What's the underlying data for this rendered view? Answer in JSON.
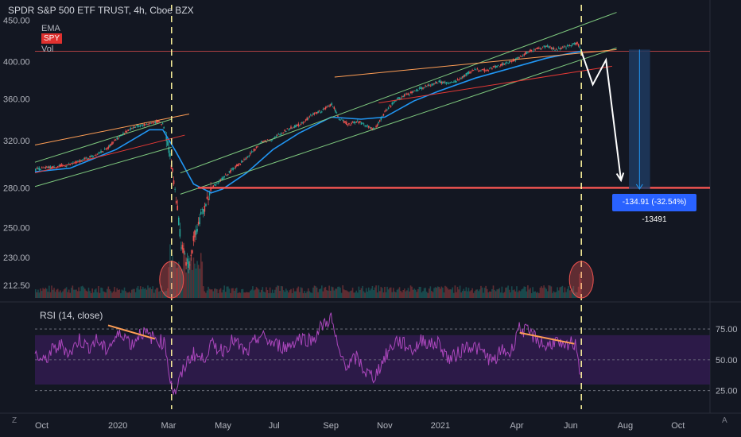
{
  "header": {
    "title": "SPDR S&P 500 ETF TRUST, 4h, Cboe BZX",
    "indicator_ema": "EMA",
    "indicator_vol": "Vol",
    "symbol_badge": "SPY"
  },
  "rsi": {
    "title": "RSI (14, close)"
  },
  "measure": {
    "label": "-134.91 (-32.54%) -13491"
  },
  "corner": {
    "left_icon": "Z",
    "right_icon": "A"
  },
  "colors": {
    "background": "#131722",
    "up": "#26a69a",
    "down": "#ef5350",
    "ema": "#2196f3",
    "rsi_line": "#ab47bc",
    "rsi_band": "#311b4f",
    "channel": "#7ec87e",
    "orange_trend": "#ff9e55",
    "red_trend": "#e53935",
    "support": "#ef5350",
    "measure_box": "#1e3a5f",
    "white_arrow": "#ffffff",
    "vline": "#fff59d"
  },
  "chart_data": [
    {
      "type": "candlestick",
      "name": "SPY 4h price",
      "y_ticks": [
        "450.00",
        "400.00",
        "360.00",
        "320.00",
        "280.00",
        "250.00",
        "230.00",
        "212.50"
      ],
      "y_tick_values": [
        450,
        400,
        360,
        320,
        280,
        250,
        230,
        212.5
      ],
      "y_scale": "log",
      "ylim": [
        205,
        470
      ],
      "x_ticks": [
        "Oct",
        "2020",
        "Mar",
        "May",
        "Jul",
        "Sep",
        "Nov",
        "2021",
        "Apr",
        "Jun",
        "Aug",
        "Oct"
      ],
      "x_tick_days": [
        0,
        92,
        152,
        213,
        274,
        336,
        397,
        458,
        548,
        609,
        670,
        731
      ],
      "xlim_days": [
        0,
        766
      ],
      "price_path": [
        [
          0,
          295
        ],
        [
          20,
          297
        ],
        [
          40,
          299
        ],
        [
          60,
          305
        ],
        [
          80,
          312
        ],
        [
          92,
          322
        ],
        [
          110,
          332
        ],
        [
          130,
          336
        ],
        [
          140,
          338
        ],
        [
          145,
          334
        ],
        [
          150,
          318
        ],
        [
          155,
          295
        ],
        [
          160,
          270
        ],
        [
          165,
          240
        ],
        [
          170,
          228
        ],
        [
          175,
          225
        ],
        [
          180,
          245
        ],
        [
          190,
          262
        ],
        [
          200,
          280
        ],
        [
          213,
          288
        ],
        [
          225,
          296
        ],
        [
          240,
          305
        ],
        [
          255,
          318
        ],
        [
          270,
          322
        ],
        [
          285,
          330
        ],
        [
          300,
          335
        ],
        [
          315,
          345
        ],
        [
          325,
          348
        ],
        [
          336,
          355
        ],
        [
          345,
          340
        ],
        [
          355,
          335
        ],
        [
          365,
          338
        ],
        [
          375,
          334
        ],
        [
          385,
          330
        ],
        [
          397,
          348
        ],
        [
          410,
          360
        ],
        [
          420,
          364
        ],
        [
          430,
          368
        ],
        [
          440,
          372
        ],
        [
          450,
          375
        ],
        [
          458,
          378
        ],
        [
          470,
          376
        ],
        [
          480,
          380
        ],
        [
          490,
          387
        ],
        [
          500,
          392
        ],
        [
          510,
          390
        ],
        [
          520,
          394
        ],
        [
          530,
          397
        ],
        [
          540,
          400
        ],
        [
          548,
          405
        ],
        [
          560,
          412
        ],
        [
          570,
          415
        ],
        [
          580,
          418
        ],
        [
          590,
          414
        ],
        [
          600,
          416
        ],
        [
          609,
          420
        ],
        [
          615,
          422
        ],
        [
          620,
          411
        ]
      ],
      "ema": [
        [
          0,
          293
        ],
        [
          40,
          296
        ],
        [
          92,
          312
        ],
        [
          130,
          330
        ],
        [
          145,
          330
        ],
        [
          160,
          310
        ],
        [
          180,
          283
        ],
        [
          200,
          276
        ],
        [
          213,
          279
        ],
        [
          240,
          292
        ],
        [
          270,
          312
        ],
        [
          300,
          327
        ],
        [
          336,
          342
        ],
        [
          370,
          340
        ],
        [
          397,
          342
        ],
        [
          430,
          358
        ],
        [
          458,
          368
        ],
        [
          500,
          382
        ],
        [
          548,
          395
        ],
        [
          580,
          404
        ],
        [
          609,
          410
        ],
        [
          620,
          412
        ]
      ],
      "volume_events": [
        {
          "day": 155,
          "label": ""
        },
        {
          "day": 620,
          "label": ""
        }
      ]
    },
    {
      "type": "annotations",
      "horizontal_red_line": 412,
      "support_line": {
        "from_day": 185,
        "to_day": 766,
        "value": 280
      },
      "vertical_markers_days": [
        155,
        620
      ],
      "channel_up": {
        "lower": [
          [
            0,
            281
          ],
          [
            155,
            314
          ]
        ],
        "upper": [
          [
            0,
            301
          ],
          [
            155,
            340
          ]
        ]
      },
      "channel_main": {
        "lower": [
          [
            165,
            275
          ],
          [
            660,
            416
          ]
        ],
        "upper": [
          [
            165,
            292
          ],
          [
            660,
            460
          ]
        ]
      },
      "orange_lines": [
        [
          [
            0,
            316
          ],
          [
            175,
            345
          ]
        ],
        [
          [
            340,
            383
          ],
          [
            660,
            414
          ]
        ]
      ],
      "red_lines": [
        [
          [
            0,
            292
          ],
          [
            170,
            325
          ]
        ],
        [
          [
            390,
            356
          ],
          [
            655,
            395
          ]
        ]
      ],
      "forecast_arrow": [
        [
          620,
          412
        ],
        [
          633,
          375
        ],
        [
          648,
          402
        ],
        [
          665,
          286
        ]
      ],
      "measure_box": {
        "from_day": 674,
        "to_day": 698,
        "top": 414,
        "bottom": 279
      }
    },
    {
      "type": "line",
      "name": "RSI (14, close)",
      "y_ticks": [
        "75.00",
        "50.00",
        "25.00"
      ],
      "y_tick_values": [
        75,
        50,
        25
      ],
      "ylim": [
        10,
        95
      ],
      "band": [
        30,
        70
      ],
      "values": [
        [
          0,
          55
        ],
        [
          10,
          48
        ],
        [
          20,
          58
        ],
        [
          30,
          62
        ],
        [
          40,
          55
        ],
        [
          50,
          67
        ],
        [
          60,
          60
        ],
        [
          70,
          66
        ],
        [
          80,
          58
        ],
        [
          92,
          68
        ],
        [
          100,
          72
        ],
        [
          110,
          62
        ],
        [
          120,
          73
        ],
        [
          130,
          69
        ],
        [
          140,
          66
        ],
        [
          148,
          63
        ],
        [
          152,
          40
        ],
        [
          158,
          22
        ],
        [
          165,
          35
        ],
        [
          172,
          48
        ],
        [
          180,
          55
        ],
        [
          190,
          50
        ],
        [
          200,
          62
        ],
        [
          213,
          58
        ],
        [
          225,
          66
        ],
        [
          240,
          55
        ],
        [
          255,
          70
        ],
        [
          270,
          63
        ],
        [
          285,
          60
        ],
        [
          300,
          68
        ],
        [
          315,
          66
        ],
        [
          325,
          77
        ],
        [
          336,
          84
        ],
        [
          345,
          55
        ],
        [
          355,
          45
        ],
        [
          365,
          52
        ],
        [
          375,
          40
        ],
        [
          385,
          36
        ],
        [
          397,
          52
        ],
        [
          410,
          66
        ],
        [
          420,
          62
        ],
        [
          430,
          58
        ],
        [
          440,
          67
        ],
        [
          450,
          62
        ],
        [
          458,
          64
        ],
        [
          470,
          50
        ],
        [
          480,
          55
        ],
        [
          490,
          62
        ],
        [
          500,
          60
        ],
        [
          510,
          55
        ],
        [
          520,
          48
        ],
        [
          530,
          58
        ],
        [
          540,
          55
        ],
        [
          548,
          76
        ],
        [
          560,
          72
        ],
        [
          570,
          67
        ],
        [
          580,
          60
        ],
        [
          590,
          66
        ],
        [
          600,
          58
        ],
        [
          609,
          64
        ],
        [
          615,
          61
        ],
        [
          620,
          32
        ]
      ],
      "divergence_lines": [
        [
          [
            83,
            78
          ],
          [
            136,
            67
          ]
        ],
        [
          [
            550,
            72
          ],
          [
            612,
            63
          ]
        ]
      ]
    }
  ]
}
